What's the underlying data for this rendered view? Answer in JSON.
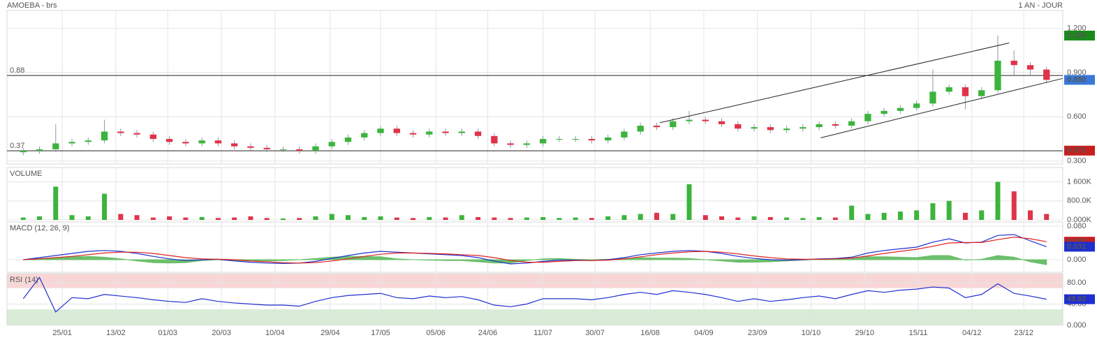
{
  "chart_data": [
    {
      "type": "candlestick",
      "title": "AMOEBA - brs",
      "subtitle": "1 AN - JOUR",
      "open": [
        0.36,
        0.37,
        0.38,
        0.42,
        0.43,
        0.44,
        0.5,
        0.49,
        0.48,
        0.45,
        0.43,
        0.42,
        0.44,
        0.42,
        0.4,
        0.39,
        0.38,
        0.38,
        0.37,
        0.4,
        0.43,
        0.46,
        0.49,
        0.52,
        0.49,
        0.48,
        0.5,
        0.49,
        0.5,
        0.47,
        0.42,
        0.41,
        0.42,
        0.45,
        0.45,
        0.45,
        0.44,
        0.46,
        0.5,
        0.54,
        0.53,
        0.57,
        0.58,
        0.57,
        0.55,
        0.52,
        0.53,
        0.51,
        0.52,
        0.53,
        0.55,
        0.54,
        0.57,
        0.62,
        0.64,
        0.66,
        0.69,
        0.77,
        0.8,
        0.74,
        0.78,
        0.98,
        0.95,
        0.92
      ],
      "high": [
        0.39,
        0.4,
        0.55,
        0.45,
        0.46,
        0.58,
        0.52,
        0.51,
        0.5,
        0.47,
        0.45,
        0.46,
        0.46,
        0.44,
        0.42,
        0.41,
        0.4,
        0.4,
        0.42,
        0.45,
        0.48,
        0.51,
        0.54,
        0.54,
        0.51,
        0.52,
        0.52,
        0.52,
        0.52,
        0.49,
        0.44,
        0.44,
        0.47,
        0.47,
        0.47,
        0.47,
        0.48,
        0.52,
        0.56,
        0.56,
        0.59,
        0.64,
        0.6,
        0.59,
        0.57,
        0.55,
        0.55,
        0.54,
        0.55,
        0.57,
        0.57,
        0.59,
        0.64,
        0.66,
        0.68,
        0.71,
        0.92,
        0.82,
        0.82,
        0.8,
        1.15,
        1.05,
        0.97,
        0.94
      ],
      "low": [
        0.34,
        0.35,
        0.36,
        0.4,
        0.41,
        0.42,
        0.47,
        0.46,
        0.43,
        0.41,
        0.4,
        0.4,
        0.4,
        0.38,
        0.37,
        0.36,
        0.36,
        0.35,
        0.35,
        0.38,
        0.41,
        0.44,
        0.47,
        0.47,
        0.46,
        0.46,
        0.47,
        0.47,
        0.45,
        0.4,
        0.39,
        0.39,
        0.4,
        0.43,
        0.43,
        0.42,
        0.42,
        0.44,
        0.48,
        0.51,
        0.51,
        0.55,
        0.55,
        0.53,
        0.5,
        0.5,
        0.49,
        0.49,
        0.5,
        0.51,
        0.52,
        0.52,
        0.55,
        0.6,
        0.62,
        0.64,
        0.67,
        0.75,
        0.65,
        0.72,
        0.76,
        0.88,
        0.88,
        0.83
      ],
      "close": [
        0.37,
        0.38,
        0.42,
        0.43,
        0.44,
        0.5,
        0.49,
        0.48,
        0.45,
        0.43,
        0.42,
        0.44,
        0.42,
        0.4,
        0.39,
        0.38,
        0.38,
        0.37,
        0.4,
        0.43,
        0.46,
        0.49,
        0.52,
        0.49,
        0.48,
        0.5,
        0.49,
        0.5,
        0.47,
        0.42,
        0.41,
        0.42,
        0.45,
        0.45,
        0.45,
        0.44,
        0.46,
        0.5,
        0.54,
        0.53,
        0.57,
        0.58,
        0.57,
        0.55,
        0.52,
        0.53,
        0.51,
        0.52,
        0.53,
        0.55,
        0.54,
        0.57,
        0.62,
        0.64,
        0.66,
        0.69,
        0.77,
        0.8,
        0.74,
        0.78,
        0.98,
        0.95,
        0.92,
        0.85
      ],
      "up_color": "#3cb43c",
      "down_color": "#e0334a",
      "xlim": [
        -1,
        64
      ],
      "xticks": [
        {
          "value": 2.4,
          "label": "25/01"
        },
        {
          "value": 5.7,
          "label": "13/02"
        },
        {
          "value": 8.9,
          "label": "01/03"
        },
        {
          "value": 12.2,
          "label": "20/03"
        },
        {
          "value": 15.5,
          "label": "10/04"
        },
        {
          "value": 18.9,
          "label": "29/04"
        },
        {
          "value": 22.0,
          "label": "17/05"
        },
        {
          "value": 25.4,
          "label": "05/06"
        },
        {
          "value": 28.6,
          "label": "24/06"
        },
        {
          "value": 32.0,
          "label": "11/07"
        },
        {
          "value": 35.2,
          "label": "30/07"
        },
        {
          "value": 38.6,
          "label": "16/08"
        },
        {
          "value": 41.9,
          "label": "04/09"
        },
        {
          "value": 45.2,
          "label": "23/09"
        },
        {
          "value": 48.5,
          "label": "10/10"
        },
        {
          "value": 51.8,
          "label": "29/10"
        },
        {
          "value": 55.1,
          "label": "15/11"
        },
        {
          "value": 58.4,
          "label": "04/12"
        },
        {
          "value": 61.6,
          "label": "23/12"
        }
      ],
      "ylim": [
        0.28,
        1.32
      ],
      "yticks": [
        {
          "value": 1.2,
          "label": "1.200"
        },
        {
          "value": 0.9,
          "label": "0.900"
        },
        {
          "value": 0.6,
          "label": "0.600"
        },
        {
          "value": 0.3,
          "label": "0.300"
        }
      ],
      "grid": true,
      "levels": [
        0.88,
        0.37
      ],
      "badges": [
        {
          "value": 1.15,
          "label": "1.150",
          "color": "#1a8a1a"
        },
        {
          "value": 0.85,
          "label": "0.850",
          "color": "#3a78d8"
        },
        {
          "value": 0.371,
          "label": "0.371",
          "color": "#c81e1e"
        }
      ],
      "trendlines": [
        {
          "x": [
            39.2,
            60.7
          ],
          "y": [
            0.56,
            1.1
          ]
        },
        {
          "x": [
            49.1,
            64
          ],
          "y": [
            0.458,
            0.86
          ]
        }
      ]
    },
    {
      "type": "bar",
      "title": "VOLUME",
      "values": [
        100000,
        150000,
        1400000,
        200000,
        150000,
        1100000,
        250000,
        200000,
        100000,
        150000,
        100000,
        120000,
        80000,
        100000,
        150000,
        80000,
        60000,
        80000,
        150000,
        250000,
        200000,
        120000,
        150000,
        100000,
        80000,
        120000,
        100000,
        200000,
        120000,
        100000,
        80000,
        100000,
        120000,
        80000,
        100000,
        80000,
        150000,
        200000,
        250000,
        300000,
        250000,
        1500000,
        200000,
        150000,
        100000,
        150000,
        120000,
        100000,
        80000,
        120000,
        100000,
        600000,
        250000,
        300000,
        350000,
        400000,
        700000,
        800000,
        300000,
        400000,
        1600000,
        1200000,
        400000,
        250000
      ],
      "ylim": [
        0,
        2200000
      ],
      "yticks": [
        {
          "value": 1600000,
          "label": "1 600K"
        },
        {
          "value": 800000,
          "label": "800.0K"
        },
        {
          "value": 0,
          "label": "0.000K"
        }
      ]
    },
    {
      "type": "line",
      "title": "MACD (12, 26, 9)",
      "series": [
        {
          "color": "#1f2fd0",
          "values": [
            0,
            0.005,
            0.01,
            0.015,
            0.02,
            0.022,
            0.02,
            0.015,
            0.008,
            0.002,
            -0.002,
            0,
            0.001,
            -0.003,
            -0.006,
            -0.008,
            -0.009,
            -0.008,
            -0.004,
            0.003,
            0.01,
            0.016,
            0.02,
            0.018,
            0.016,
            0.014,
            0.012,
            0.01,
            0.005,
            -0.003,
            -0.01,
            -0.008,
            -0.004,
            -0.001,
            -0.001,
            -0.002,
            0,
            0.005,
            0.012,
            0.016,
            0.02,
            0.022,
            0.02,
            0.015,
            0.008,
            0.003,
            0,
            -0.001,
            0,
            0.002,
            0.003,
            0.006,
            0.016,
            0.022,
            0.026,
            0.03,
            0.042,
            0.05,
            0.04,
            0.042,
            0.058,
            0.06,
            0.045,
            0.031
          ]
        },
        {
          "color": "#e02020",
          "values": [
            0,
            0.002,
            0.005,
            0.008,
            0.012,
            0.016,
            0.018,
            0.018,
            0.015,
            0.01,
            0.005,
            0.002,
            0.001,
            0,
            -0.003,
            -0.005,
            -0.007,
            -0.008,
            -0.007,
            -0.003,
            0.002,
            0.008,
            0.013,
            0.016,
            0.016,
            0.015,
            0.014,
            0.012,
            0.01,
            0.005,
            -0.002,
            -0.006,
            -0.006,
            -0.004,
            -0.002,
            -0.002,
            -0.001,
            0.002,
            0.007,
            0.012,
            0.016,
            0.019,
            0.02,
            0.018,
            0.014,
            0.009,
            0.005,
            0.002,
            0.001,
            0.001,
            0.002,
            0.004,
            0.009,
            0.015,
            0.02,
            0.025,
            0.032,
            0.04,
            0.041,
            0.041,
            0.048,
            0.054,
            0.05,
            0.043
          ]
        }
      ],
      "histogram": {
        "color": "#6cbf6c",
        "values": [
          0,
          0.003,
          0.005,
          0.007,
          0.008,
          0.006,
          0.002,
          -0.003,
          -0.007,
          -0.008,
          -0.007,
          -0.002,
          0,
          -0.003,
          -0.003,
          -0.003,
          -0.002,
          0,
          0.003,
          0.006,
          0.008,
          0.008,
          0.007,
          0.002,
          0,
          -0.001,
          -0.002,
          -0.002,
          -0.005,
          -0.008,
          -0.008,
          -0.002,
          0.002,
          0.003,
          0.001,
          0,
          0.001,
          0.003,
          0.005,
          0.004,
          0.004,
          0.003,
          0,
          -0.003,
          -0.006,
          -0.006,
          -0.005,
          -0.003,
          -0.001,
          0.001,
          0.001,
          0.002,
          0.007,
          0.007,
          0.006,
          0.005,
          0.01,
          0.01,
          -0.001,
          0.001,
          0.01,
          0.006,
          -0.005,
          -0.012
        ]
      },
      "ylim": [
        -0.03,
        0.09
      ],
      "yticks": [
        {
          "value": 0.08,
          "label": "0.080"
        },
        {
          "value": 0,
          "label": "0.000"
        }
      ],
      "badges": [
        {
          "value": 0.043,
          "label": "0.043",
          "color": "#c81e1e"
        },
        {
          "value": 0.031,
          "label": "0.031",
          "color": "#1f2fd0"
        }
      ]
    },
    {
      "type": "line",
      "title": "RSI (14)",
      "series": [
        {
          "color": "#1f2fd0",
          "values": [
            50,
            90,
            25,
            52,
            50,
            58,
            55,
            52,
            48,
            45,
            43,
            50,
            45,
            42,
            40,
            38,
            38,
            36,
            45,
            52,
            56,
            58,
            60,
            52,
            50,
            55,
            52,
            54,
            48,
            38,
            35,
            40,
            50,
            50,
            50,
            48,
            52,
            58,
            62,
            58,
            65,
            62,
            58,
            52,
            45,
            50,
            45,
            48,
            52,
            55,
            50,
            58,
            65,
            62,
            66,
            68,
            72,
            70,
            52,
            58,
            78,
            60,
            55,
            49.02
          ]
        }
      ],
      "overbought": 70,
      "oversold": 30,
      "overbought_color": "#f9d6d6",
      "oversold_color": "#d8ecd8",
      "ylim": [
        0,
        97
      ],
      "yticks": [
        {
          "value": 80,
          "label": "80.00"
        },
        {
          "value": 40,
          "label": "40.00"
        },
        {
          "value": 0,
          "label": "0.000"
        }
      ],
      "badges": [
        {
          "value": 49.02,
          "label": "49.02",
          "color": "#1f2fd0"
        }
      ]
    }
  ]
}
